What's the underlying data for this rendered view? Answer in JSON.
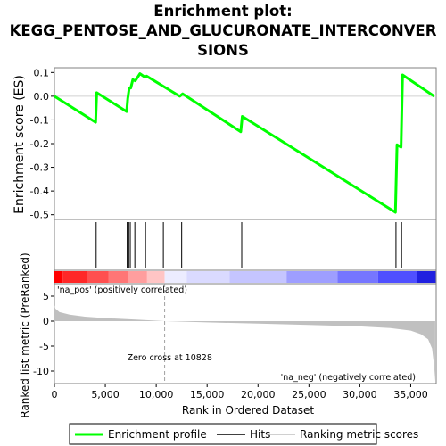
{
  "title_lines": [
    "Enrichment plot:",
    "KEGG_PENTOSE_AND_GLUCURONATE_INTERCONVER",
    "SIONS"
  ],
  "colors": {
    "profile": "#00ff00",
    "hits": "#000000",
    "metric_fill": "#c0c0c0",
    "pos_label": "#cc0000",
    "neg_label": "#0000cc",
    "zero_line": "#a0a0a0"
  },
  "chart_data": [
    {
      "type": "line",
      "name": "enrichment-profile",
      "ylabel": "Enrichment score (ES)",
      "xlim": [
        0,
        37500
      ],
      "ylim": [
        -0.52,
        0.12
      ],
      "yticks": [
        0.1,
        0.0,
        -0.1,
        -0.2,
        -0.3,
        -0.4,
        -0.5
      ],
      "ytick_labels": [
        "0.1",
        "0.0",
        "-0.1",
        "-0.2",
        "-0.3",
        "-0.4",
        "-0.5"
      ],
      "x": [
        0,
        4050,
        4150,
        7100,
        7200,
        7350,
        7500,
        7700,
        7950,
        8400,
        8900,
        9050,
        12300,
        12600,
        18300,
        18450,
        33500,
        33650,
        34050,
        34200,
        37300
      ],
      "y": [
        0.0,
        -0.11,
        0.015,
        -0.065,
        -0.01,
        0.035,
        0.035,
        0.07,
        0.065,
        0.095,
        0.08,
        0.085,
        0.0,
        0.01,
        -0.15,
        -0.085,
        -0.49,
        -0.205,
        -0.215,
        0.09,
        0.0
      ]
    },
    {
      "type": "scatter",
      "name": "hits",
      "x": [
        4100,
        7150,
        7300,
        7450,
        7900,
        8950,
        10700,
        12500,
        18400,
        33550,
        34100
      ]
    },
    {
      "type": "area",
      "name": "ranked-list-metric",
      "ylabel": "Ranked list metric (PreRanked)",
      "xlabel": "Rank in Ordered Dataset",
      "xlim": [
        0,
        37500
      ],
      "ylim": [
        -12.5,
        7.5
      ],
      "xticks": [
        0,
        5000,
        10000,
        15000,
        20000,
        25000,
        30000,
        35000
      ],
      "xtick_labels": [
        "0",
        "5,000",
        "10,000",
        "15,000",
        "20,000",
        "25,000",
        "30,000",
        "35,000"
      ],
      "yticks": [
        5,
        0,
        -5,
        -10
      ],
      "ytick_labels": [
        "5",
        "0",
        "-5",
        "-10"
      ],
      "x": [
        0,
        100,
        500,
        1500,
        3000,
        5000,
        8000,
        10828,
        15000,
        20000,
        25000,
        30000,
        33000,
        35000,
        36000,
        36700,
        37100,
        37300,
        37400
      ],
      "y": [
        3.2,
        2.5,
        1.8,
        1.3,
        0.9,
        0.6,
        0.3,
        0.0,
        -0.25,
        -0.5,
        -0.75,
        -1.05,
        -1.4,
        -1.9,
        -2.6,
        -3.6,
        -5.5,
        -9.0,
        -12.0
      ],
      "zero_cross_x": 10828,
      "zero_cross_label": "Zero cross at 10828",
      "pos_label": "'na_pos' (positively correlated)",
      "neg_label": "'na_neg' (negatively correlated)"
    }
  ],
  "colorbar": {
    "segments": [
      {
        "from": 0,
        "to": 800,
        "color": "#ff0000"
      },
      {
        "from": 800,
        "to": 3200,
        "color": "#ff2828"
      },
      {
        "from": 3200,
        "to": 5300,
        "color": "#ff4f4f"
      },
      {
        "from": 5300,
        "to": 7200,
        "color": "#ff7676"
      },
      {
        "from": 7200,
        "to": 9100,
        "color": "#ff9e9e"
      },
      {
        "from": 9100,
        "to": 10828,
        "color": "#ffc5c5"
      },
      {
        "from": 10828,
        "to": 13000,
        "color": "#ececff"
      },
      {
        "from": 13000,
        "to": 17200,
        "color": "#dadaff"
      },
      {
        "from": 17200,
        "to": 22800,
        "color": "#c5c5ff"
      },
      {
        "from": 22800,
        "to": 27800,
        "color": "#9e9eff"
      },
      {
        "from": 27800,
        "to": 31800,
        "color": "#7676ff"
      },
      {
        "from": 31800,
        "to": 35600,
        "color": "#4f4fff"
      },
      {
        "from": 35600,
        "to": 37450,
        "color": "#2020e0"
      }
    ]
  },
  "legend": [
    {
      "label": "Enrichment profile",
      "color": "#00ff00",
      "style": "thick"
    },
    {
      "label": "Hits",
      "color": "#000000",
      "style": "thin"
    },
    {
      "label": "Ranking metric scores",
      "color": "#c0c0c0",
      "style": "thin"
    }
  ]
}
